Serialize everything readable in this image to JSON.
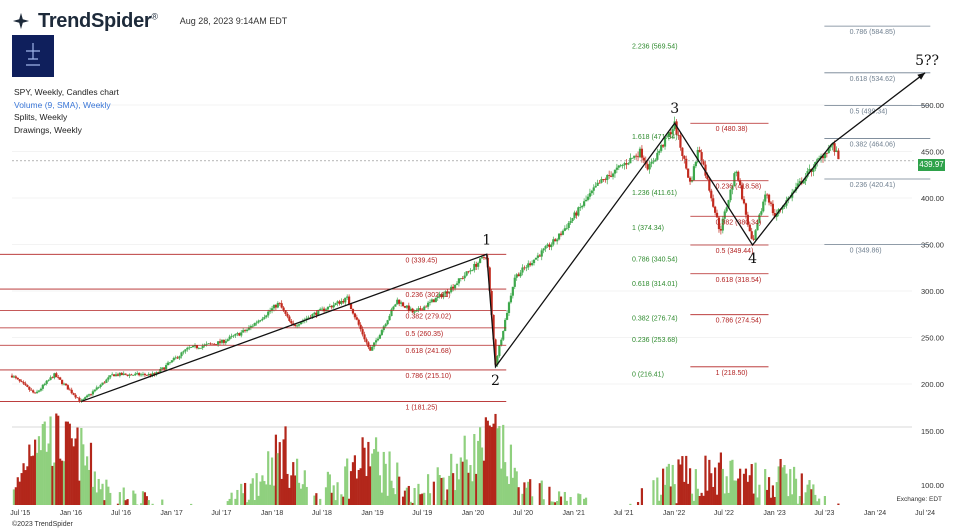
{
  "header": {
    "brand": "TrendSpider",
    "brand_tm": "®",
    "timestamp": "Aug 28, 2023 9:14AM EDT"
  },
  "info": {
    "line1": "SPY, Weekly, Candles chart",
    "line2": "Volume (9, SMA), Weekly",
    "line3": "Splits, Weekly",
    "line4": "Drawings, Weekly"
  },
  "footer": {
    "copyright": "©2023 TrendSpider",
    "exchange": "Exchange: EDT"
  },
  "colors": {
    "up": "#3ea84c",
    "down": "#c22b1f",
    "vol_up": "#8fd07e",
    "vol_down": "#b3271b",
    "fib_green": "#2e8b2e",
    "fib_red": "#b22222",
    "fib_gray": "#6f7f8f",
    "price_badge": "#2fa24b"
  },
  "chart_data": {
    "type": "candlestick",
    "symbol": "SPY",
    "interval": "Weekly",
    "last_price": 439.97,
    "last_price_label": "439.97",
    "x_tick_labels": [
      "Jul '15",
      "Jan '16",
      "Jul '16",
      "Jan '17",
      "Jul '17",
      "Jan '18",
      "Jul '18",
      "Jan '19",
      "Jul '19",
      "Jan '20",
      "Jul '20",
      "Jan '21",
      "Jul '21",
      "Jan '22",
      "Jul '22",
      "Jan '23",
      "Jul '23",
      "Jan '24",
      "Jul '24"
    ],
    "y_ticks": [
      200,
      250,
      300,
      350,
      400,
      450,
      500
    ],
    "y_tick_labels": [
      "200.00",
      "250.00",
      "300.00",
      "350.00",
      "400.00",
      "450.00",
      "500.00"
    ],
    "volume_ticks": [
      100,
      150
    ],
    "volume_tick_labels": [
      "100.00",
      "150.00"
    ],
    "price_path": [
      [
        "2015-06-01",
        209
      ],
      [
        "2015-08-24",
        189
      ],
      [
        "2015-11-01",
        210
      ],
      [
        "2016-02-08",
        181
      ],
      [
        "2016-06-01",
        210
      ],
      [
        "2016-11-01",
        210
      ],
      [
        "2017-03-01",
        238
      ],
      [
        "2017-07-01",
        245
      ],
      [
        "2017-10-01",
        258
      ],
      [
        "2018-01-26",
        287
      ],
      [
        "2018-03-15",
        262
      ],
      [
        "2018-06-01",
        275
      ],
      [
        "2018-10-01",
        292
      ],
      [
        "2018-12-24",
        235
      ],
      [
        "2019-04-01",
        290
      ],
      [
        "2019-06-01",
        276
      ],
      [
        "2019-10-01",
        300
      ],
      [
        "2020-02-20",
        339
      ],
      [
        "2020-03-23",
        222
      ],
      [
        "2020-06-01",
        315
      ],
      [
        "2020-09-01",
        340
      ],
      [
        "2020-11-01",
        356
      ],
      [
        "2021-01-01",
        380
      ],
      [
        "2021-04-01",
        415
      ],
      [
        "2021-09-01",
        450
      ],
      [
        "2021-10-01",
        432
      ],
      [
        "2022-01-03",
        479
      ],
      [
        "2022-03-01",
        415
      ],
      [
        "2022-04-01",
        455
      ],
      [
        "2022-06-17",
        364
      ],
      [
        "2022-08-15",
        431
      ],
      [
        "2022-10-13",
        349
      ],
      [
        "2022-12-01",
        408
      ],
      [
        "2023-01-01",
        380
      ],
      [
        "2023-04-01",
        415
      ],
      [
        "2023-07-28",
        458
      ],
      [
        "2023-08-25",
        439.97
      ]
    ],
    "volume_path": [
      [
        "2015-06-01",
        85
      ],
      [
        "2015-08-24",
        160
      ],
      [
        "2016-02-08",
        135
      ],
      [
        "2016-06-01",
        90
      ],
      [
        "2017-01-01",
        75
      ],
      [
        "2017-07-01",
        70
      ],
      [
        "2018-02-09",
        140
      ],
      [
        "2018-06-01",
        85
      ],
      [
        "2018-12-24",
        135
      ],
      [
        "2019-06-01",
        90
      ],
      [
        "2020-03-23",
        152
      ],
      [
        "2020-07-01",
        95
      ],
      [
        "2021-01-01",
        85
      ],
      [
        "2021-07-01",
        70
      ],
      [
        "2022-01-01",
        110
      ],
      [
        "2022-06-17",
        115
      ],
      [
        "2022-10-13",
        105
      ],
      [
        "2023-03-01",
        110
      ],
      [
        "2023-08-01",
        75
      ]
    ],
    "wave_points": [
      {
        "label": "",
        "date": "2016-02-08",
        "price": 181.25
      },
      {
        "label": "1",
        "date": "2020-02-20",
        "price": 339.45
      },
      {
        "label": "2",
        "date": "2020-03-23",
        "price": 218.5
      },
      {
        "label": "3",
        "date": "2022-01-03",
        "price": 480.38
      },
      {
        "label": "4",
        "date": "2022-10-13",
        "price": 349.44
      },
      {
        "label": "",
        "date": "2023-07-28",
        "price": 458
      },
      {
        "label": "5??",
        "date": "2024-07-01",
        "price": 534.62
      }
    ],
    "fib_sets": [
      {
        "color": "red",
        "start": "2015-04-01",
        "end": "2020-05-01",
        "label_date": "2019-05-01",
        "levels": [
          {
            "label": "1 (181.25)",
            "price": 181.25
          },
          {
            "label": "0.786 (215.10)",
            "price": 215.1
          },
          {
            "label": "0.618 (241.68)",
            "price": 241.68
          },
          {
            "label": "0.5 (260.35)",
            "price": 260.35
          },
          {
            "label": "0.382 (279.02)",
            "price": 279.02
          },
          {
            "label": "0.236 (302.11)",
            "price": 302.11
          },
          {
            "label": "0 (339.45)",
            "price": 339.45
          }
        ]
      },
      {
        "color": "green",
        "start": "2020-05-01",
        "end": "2021-12-01",
        "label_date": "2021-08-01",
        "levels": [
          {
            "label": "2.236 (569.54)",
            "price": 569.54
          },
          {
            "label": "1.618 (471.94)",
            "price": 471.94
          },
          {
            "label": "1.236 (411.61)",
            "price": 411.61
          },
          {
            "label": "1 (374.34)",
            "price": 374.34
          },
          {
            "label": "0.786 (340.54)",
            "price": 340.54
          },
          {
            "label": "0.618 (314.01)",
            "price": 314.01
          },
          {
            "label": "0.382 (276.74)",
            "price": 276.74
          },
          {
            "label": "0.236 (253.68)",
            "price": 253.68
          },
          {
            "label": "0 (216.41)",
            "price": 216.41
          }
        ]
      },
      {
        "color": "red",
        "start": "2022-03-01",
        "end": "2022-12-10",
        "label_date": "2022-06-01",
        "levels": [
          {
            "label": "0 (480.38)",
            "price": 480.38
          },
          {
            "label": "0.236 (418.58)",
            "price": 418.58
          },
          {
            "label": "0.382 (380.34)",
            "price": 380.34
          },
          {
            "label": "0.5 (349.44)",
            "price": 349.44
          },
          {
            "label": "0.618 (318.54)",
            "price": 318.54
          },
          {
            "label": "0.786 (274.54)",
            "price": 274.54
          },
          {
            "label": "1 (218.50)",
            "price": 218.5
          }
        ]
      },
      {
        "color": "gray",
        "start": "2023-07-01",
        "end": "2024-07-20",
        "label_date": "2023-10-01",
        "levels": [
          {
            "label": "0.786 (584.85)",
            "price": 584.85
          },
          {
            "label": "0.618 (534.62)",
            "price": 534.62
          },
          {
            "label": "0.5 (499.34)",
            "price": 499.34
          },
          {
            "label": "0.382 (464.06)",
            "price": 464.06
          },
          {
            "label": "0.236 (420.41)",
            "price": 420.41
          },
          {
            "label": "0 (349.86)",
            "price": 349.86
          }
        ]
      }
    ]
  }
}
